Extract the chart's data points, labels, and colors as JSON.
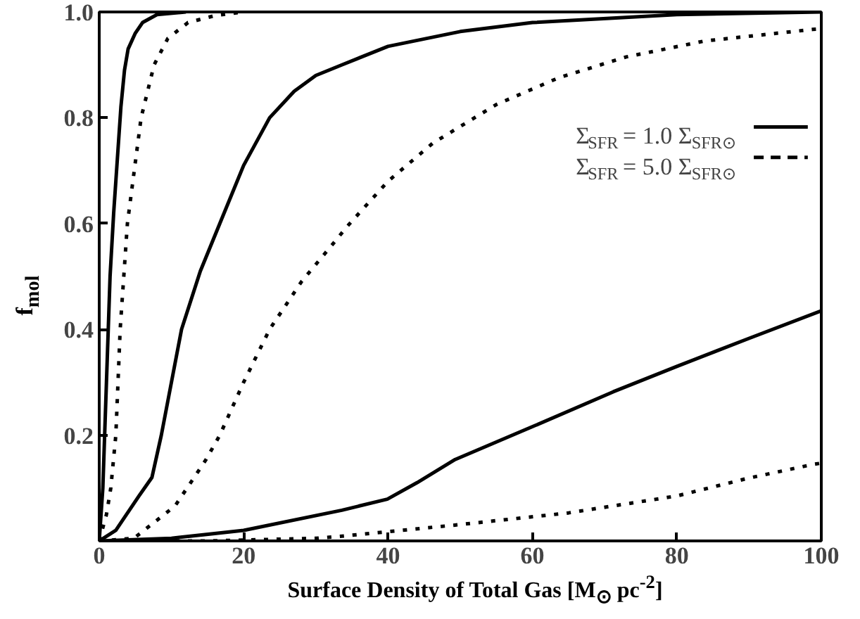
{
  "chart_data": {
    "type": "line",
    "xlabel": "Surface Density of Total Gas [M$_{⊙}$ pc$^{-2}$]",
    "ylabel": "f$_{mol}$",
    "xlim": [
      0,
      100
    ],
    "ylim": [
      0,
      1.0
    ],
    "xticks": [
      0,
      20,
      40,
      60,
      80,
      100
    ],
    "yticks": [
      0.2,
      0.4,
      0.6,
      0.8,
      {
        "value": 1.0,
        "label": "1.0"
      }
    ],
    "grid": false,
    "legend": "top right",
    "marker": "none",
    "series": [
      {
        "name": "Σ$_{SFR}$ = 1.0 Σ$_{SFR⊙}$",
        "color": "#000000",
        "line_style": "solid",
        "x": [
          0,
          0.5,
          1,
          1.5,
          2,
          2.5,
          3,
          3.5,
          4,
          5,
          6,
          8,
          12
        ],
        "values": [
          0,
          0.1,
          0.3,
          0.5,
          0.62,
          0.72,
          0.82,
          0.89,
          0.93,
          0.96,
          0.98,
          0.995,
          1.0
        ]
      },
      {
        "name": "Σ$_{SFR}$ = 5.0 Σ$_{SFR⊙}$",
        "color": "#000000",
        "line_style": "dotted",
        "x": [
          0,
          1,
          1.6,
          2.3,
          2.9,
          3.9,
          5.8,
          7.6,
          9.5,
          12.3,
          16,
          20
        ],
        "values": [
          0,
          0.05,
          0.1,
          0.2,
          0.4,
          0.6,
          0.8,
          0.9,
          0.95,
          0.98,
          0.993,
          1.0
        ]
      },
      {
        "color": "#000000",
        "line_style": "solid",
        "x": [
          0,
          2.3,
          5.5,
          7.3,
          8.6,
          11.4,
          14,
          16.7,
          20,
          23.6,
          27,
          30,
          33.6,
          40,
          50,
          60,
          80,
          100
        ],
        "values": [
          0,
          0.02,
          0.085,
          0.12,
          0.2,
          0.4,
          0.51,
          0.6,
          0.71,
          0.8,
          0.85,
          0.88,
          0.9,
          0.935,
          0.963,
          0.98,
          0.995,
          1.0
        ]
      },
      {
        "color": "#000000",
        "line_style": "dotted",
        "x": [
          0,
          4.8,
          10.5,
          14.8,
          16.7,
          20,
          23.6,
          28,
          32.7,
          34.3,
          40,
          46.2,
          55,
          63.7,
          73,
          83.8,
          98.8,
          100
        ],
        "values": [
          0,
          0.005,
          0.066,
          0.154,
          0.2,
          0.3,
          0.4,
          0.49,
          0.567,
          0.594,
          0.68,
          0.752,
          0.825,
          0.876,
          0.915,
          0.945,
          0.967,
          0.968
        ]
      },
      {
        "color": "#000000",
        "line_style": "solid",
        "x": [
          0,
          10,
          20,
          33.6,
          39.9,
          44,
          49.3,
          60,
          71.2,
          80,
          90,
          100
        ],
        "values": [
          0,
          0.005,
          0.02,
          0.058,
          0.079,
          0.11,
          0.154,
          0.216,
          0.282,
          0.33,
          0.383,
          0.435
        ]
      },
      {
        "color": "#000000",
        "line_style": "dotted",
        "x": [
          0,
          15,
          30,
          33.6,
          49.3,
          65,
          80,
          90,
          99,
          100
        ],
        "values": [
          0,
          0,
          0.005,
          0.009,
          0.03,
          0.053,
          0.085,
          0.119,
          0.145,
          0.147
        ]
      }
    ]
  }
}
